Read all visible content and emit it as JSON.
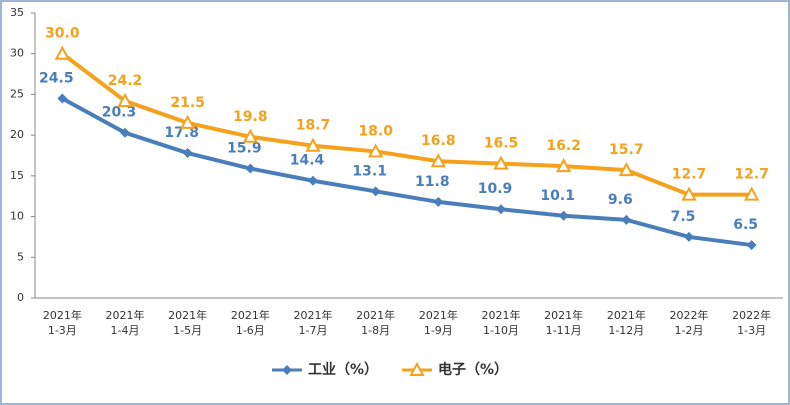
{
  "chart_data": {
    "type": "line",
    "categories": [
      [
        "2021年",
        "1-3月"
      ],
      [
        "2021年",
        "1-4月"
      ],
      [
        "2021年",
        "1-5月"
      ],
      [
        "2021年",
        "1-6月"
      ],
      [
        "2021年",
        "1-7月"
      ],
      [
        "2021年",
        "1-8月"
      ],
      [
        "2021年",
        "1-9月"
      ],
      [
        "2021年",
        "1-10月"
      ],
      [
        "2021年",
        "1-11月"
      ],
      [
        "2021年",
        "1-12月"
      ],
      [
        "2022年",
        "1-2月"
      ],
      [
        "2022年",
        "1-3月"
      ]
    ],
    "series": [
      {
        "name": "工业（%）",
        "color": "#4a7ebb",
        "marker": "diamond",
        "values": [
          24.5,
          20.3,
          17.8,
          15.9,
          14.4,
          13.1,
          11.8,
          10.9,
          10.1,
          9.6,
          7.5,
          6.5
        ]
      },
      {
        "name": "电子（%）",
        "color": "#f5a11c",
        "marker": "triangle",
        "values": [
          30,
          24.2,
          21.5,
          19.8,
          18.7,
          18,
          16.8,
          16.5,
          16.2,
          15.7,
          12.7,
          12.7
        ],
        "value_labels": [
          "30.0",
          "24.2",
          "21.5",
          "19.8",
          "18.7",
          "18.0",
          "16.8",
          "16.5",
          "16.2",
          "15.7",
          "12.7",
          "12.7"
        ]
      }
    ],
    "ylim": [
      0,
      35
    ],
    "yticks": [
      0,
      5,
      10,
      15,
      20,
      25,
      30,
      35
    ]
  }
}
